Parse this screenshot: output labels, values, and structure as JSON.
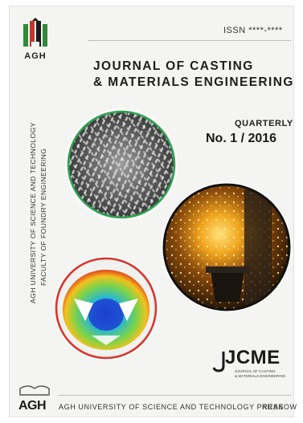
{
  "cover": {
    "logo_text": "AGH",
    "issn": "ISSN ****-****",
    "title_line1": "JOURNAL OF CASTING",
    "title_line2": "& MATERIALS ENGINEERING",
    "frequency": "QUARTERLY",
    "issue": "No. 1 / 2016",
    "vertical_line1": "AGH UNIVERSITY OF SCIENCE AND TECHNOLOGY",
    "vertical_line2": "FACULTY OF FOUNDRY ENGINEERING",
    "jcme_logo": "JCME",
    "jcme_sub1": "JOURNAL OF CASTING",
    "jcme_sub2": "& MATERIALS ENGINEERING",
    "bottom_logo_text": "AGH",
    "publisher": "AGH UNIVERSITY OF SCIENCE AND TECHNOLOGY PRESS",
    "city": "KRAKOW"
  },
  "colors": {
    "agh_green": "#2e8b3a",
    "agh_red": "#c0392b",
    "agh_black": "#1a1a1a",
    "ring_green": "#2ea44f",
    "ring_red": "#d9342b",
    "ring_black": "#111111"
  },
  "icons": {
    "top_logo": "agh-emblem",
    "bottom_logo": "agh-press-emblem",
    "jcme_mark": "jcme-hook-icon"
  }
}
